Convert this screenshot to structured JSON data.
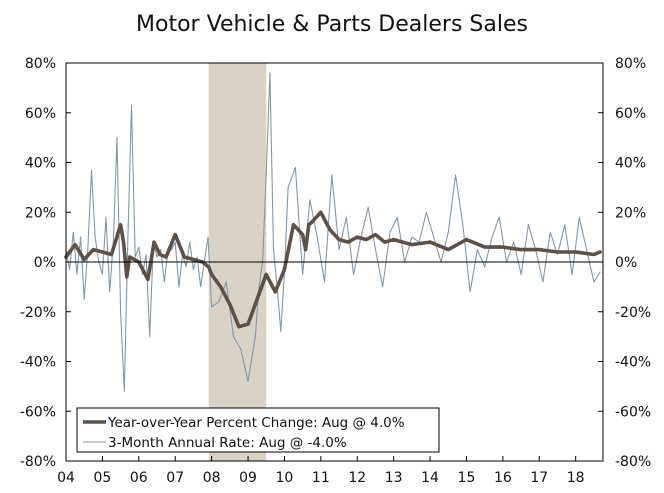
{
  "chart_data": {
    "type": "line",
    "title": "Motor Vehicle & Parts Dealers Sales",
    "xlabel": "",
    "ylabel": "",
    "x_tick_labels": [
      "04",
      "05",
      "06",
      "07",
      "08",
      "09",
      "10",
      "11",
      "12",
      "13",
      "14",
      "15",
      "16",
      "17",
      "18"
    ],
    "y_tick_labels": [
      "80%",
      "60%",
      "40%",
      "20%",
      "0%",
      "-20%",
      "-40%",
      "-60%",
      "-80%"
    ],
    "y_ticks": [
      80,
      60,
      40,
      20,
      0,
      -20,
      -40,
      -60,
      -80
    ],
    "xlim": [
      2004,
      2018.75
    ],
    "ylim": [
      -80,
      80
    ],
    "recession_band": [
      2007.92,
      2009.5
    ],
    "legend_position": "bottom-left",
    "colors": {
      "yoy": "#5c5047",
      "three_month": "#8497a8",
      "recession": "#d8d3c5",
      "zero_line": "#000000"
    },
    "series": [
      {
        "name": "Year-over-Year Percent Change: Aug @ 4.0%",
        "color": "#5c5047",
        "width": 3.6,
        "x": [
          2004.0,
          2004.25,
          2004.5,
          2004.75,
          2005.0,
          2005.25,
          2005.5,
          2005.58,
          2005.67,
          2005.75,
          2006.0,
          2006.25,
          2006.42,
          2006.58,
          2006.75,
          2007.0,
          2007.25,
          2007.5,
          2007.75,
          2007.92,
          2008.0,
          2008.25,
          2008.5,
          2008.75,
          2009.0,
          2009.25,
          2009.5,
          2009.75,
          2010.0,
          2010.25,
          2010.5,
          2010.58,
          2010.67,
          2010.75,
          2011.0,
          2011.25,
          2011.5,
          2011.75,
          2012.0,
          2012.25,
          2012.5,
          2012.75,
          2013.0,
          2013.5,
          2014.0,
          2014.5,
          2015.0,
          2015.5,
          2016.0,
          2016.5,
          2017.0,
          2017.5,
          2018.0,
          2018.5,
          2018.67
        ],
        "values": [
          2,
          7,
          1,
          5,
          4,
          3,
          15,
          8,
          -6,
          2,
          0,
          -7,
          8,
          3,
          2,
          11,
          2,
          1,
          0,
          -2,
          -5,
          -10,
          -17,
          -26,
          -25,
          -15,
          -5,
          -12,
          -3,
          15,
          11,
          5,
          15,
          16,
          20,
          13,
          9,
          8,
          10,
          9,
          11,
          8,
          9,
          7,
          8,
          5,
          9,
          6,
          6,
          5,
          5,
          4,
          4,
          3,
          4
        ]
      },
      {
        "name": "3-Month Annual Rate: Aug @ -4.0%",
        "color": "#8497a8",
        "width": 1.1,
        "x": [
          2004.0,
          2004.1,
          2004.2,
          2004.3,
          2004.4,
          2004.5,
          2004.6,
          2004.7,
          2004.8,
          2004.9,
          2005.0,
          2005.1,
          2005.2,
          2005.3,
          2005.4,
          2005.5,
          2005.6,
          2005.7,
          2005.8,
          2005.9,
          2006.0,
          2006.1,
          2006.2,
          2006.3,
          2006.4,
          2006.5,
          2006.6,
          2006.7,
          2006.8,
          2006.9,
          2007.0,
          2007.1,
          2007.2,
          2007.3,
          2007.4,
          2007.5,
          2007.6,
          2007.7,
          2007.8,
          2007.9,
          2008.0,
          2008.2,
          2008.4,
          2008.6,
          2008.8,
          2009.0,
          2009.2,
          2009.3,
          2009.4,
          2009.5,
          2009.6,
          2009.7,
          2009.8,
          2009.9,
          2010.0,
          2010.1,
          2010.3,
          2010.5,
          2010.7,
          2010.9,
          2011.1,
          2011.3,
          2011.5,
          2011.7,
          2011.9,
          2012.1,
          2012.3,
          2012.5,
          2012.7,
          2012.9,
          2013.1,
          2013.3,
          2013.5,
          2013.7,
          2013.9,
          2014.1,
          2014.3,
          2014.5,
          2014.7,
          2014.9,
          2015.1,
          2015.3,
          2015.5,
          2015.7,
          2015.9,
          2016.1,
          2016.3,
          2016.5,
          2016.7,
          2016.9,
          2017.1,
          2017.3,
          2017.5,
          2017.7,
          2017.9,
          2018.1,
          2018.3,
          2018.5,
          2018.67
        ],
        "values": [
          5,
          -3,
          12,
          -5,
          10,
          -15,
          5,
          37,
          10,
          0,
          -5,
          18,
          -12,
          8,
          50,
          -20,
          -52,
          10,
          63,
          2,
          6,
          -5,
          3,
          -30,
          8,
          2,
          5,
          -8,
          4,
          5,
          8,
          -10,
          3,
          -2,
          8,
          -3,
          2,
          -10,
          0,
          10,
          -18,
          -16,
          -8,
          -30,
          -35,
          -48,
          -30,
          -10,
          0,
          35,
          76,
          5,
          -10,
          -28,
          -5,
          30,
          38,
          -5,
          25,
          10,
          -8,
          35,
          5,
          18,
          -5,
          10,
          22,
          5,
          -10,
          12,
          18,
          0,
          10,
          8,
          20,
          10,
          0,
          12,
          35,
          15,
          -12,
          5,
          -2,
          10,
          18,
          0,
          8,
          -5,
          15,
          5,
          -8,
          12,
          3,
          15,
          -5,
          18,
          5,
          -8,
          -4
        ]
      }
    ]
  }
}
